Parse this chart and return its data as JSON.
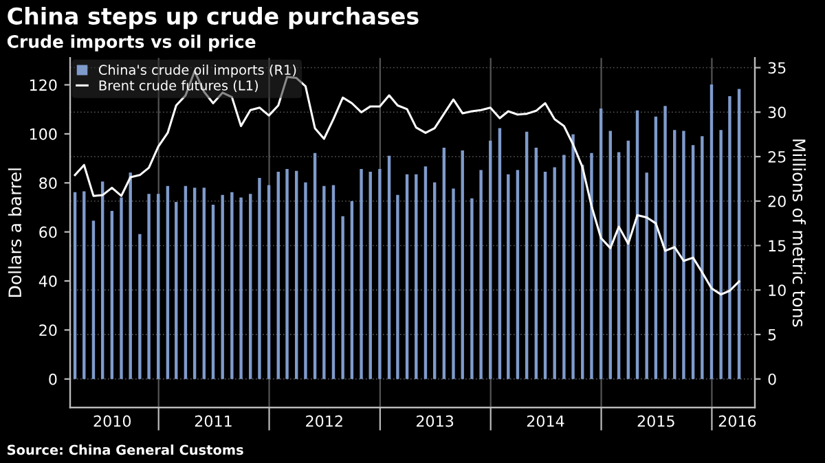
{
  "chart_data": {
    "type": "bar",
    "title": "China steps up crude purchases",
    "subtitle": "Crude imports vs oil price",
    "ylabel": "Dollars a barrel",
    "y2label": "Millions of metric tons",
    "annotations": [
      "Source: China General Customs"
    ],
    "x": [
      "2010-03-31",
      "2010-04-30",
      "2010-05-31",
      "2010-06-30",
      "2010-07-31",
      "2010-08-31",
      "2010-09-30",
      "2010-10-31",
      "2010-11-30",
      "2010-12-31",
      "2011-01-31",
      "2011-02-28",
      "2011-03-31",
      "2011-04-30",
      "2011-05-31",
      "2011-06-30",
      "2011-07-31",
      "2011-08-31",
      "2011-09-30",
      "2011-10-31",
      "2011-11-30",
      "2011-12-31",
      "2012-01-31",
      "2012-02-29",
      "2012-03-31",
      "2012-04-30",
      "2012-05-31",
      "2012-06-30",
      "2012-07-31",
      "2012-08-31",
      "2012-09-30",
      "2012-10-31",
      "2012-11-30",
      "2012-12-31",
      "2013-01-31",
      "2013-02-28",
      "2013-03-31",
      "2013-04-30",
      "2013-05-31",
      "2013-06-30",
      "2013-07-31",
      "2013-08-31",
      "2013-09-30",
      "2013-10-31",
      "2013-11-30",
      "2013-12-31",
      "2014-01-31",
      "2014-02-28",
      "2014-03-31",
      "2014-04-30",
      "2014-05-31",
      "2014-06-30",
      "2014-07-31",
      "2014-08-31",
      "2014-09-30",
      "2014-10-31",
      "2014-11-30",
      "2014-12-31",
      "2015-01-31",
      "2015-02-28",
      "2015-03-31",
      "2015-04-30",
      "2015-05-31",
      "2015-06-30",
      "2015-07-31",
      "2015-08-31",
      "2015-09-30",
      "2015-10-31",
      "2015-11-30",
      "2015-12-31",
      "2016-01-31",
      "2016-02-29",
      "2016-03-31"
    ],
    "series": [
      {
        "name": "China's crude oil imports (R1)",
        "type": "bar",
        "axis": "y2",
        "color": "#7f9bcc",
        "values": [
          21.0,
          21.1,
          17.8,
          22.2,
          18.9,
          20.4,
          23.2,
          16.3,
          20.8,
          20.8,
          21.7,
          19.9,
          21.7,
          21.5,
          21.5,
          19.6,
          20.7,
          21.0,
          20.4,
          20.8,
          22.6,
          21.8,
          23.3,
          23.6,
          23.4,
          22.1,
          25.4,
          21.7,
          21.8,
          18.3,
          20.0,
          23.6,
          23.3,
          23.6,
          25.1,
          20.7,
          23.0,
          23.0,
          23.9,
          22.1,
          26.0,
          21.4,
          25.7,
          20.3,
          23.5,
          26.8,
          28.2,
          23.0,
          23.5,
          27.8,
          26.0,
          23.3,
          23.8,
          25.2,
          27.5,
          24.1,
          25.4,
          30.4,
          27.9,
          25.5,
          26.8,
          30.2,
          23.2,
          29.5,
          30.7,
          28.0,
          27.9,
          26.3,
          27.3,
          33.1,
          28.0,
          31.8,
          32.6
        ]
      },
      {
        "name": "Brent crude futures (L1)",
        "type": "line",
        "axis": "y",
        "color": "#ffffff",
        "values": [
          83.2,
          87.3,
          74.7,
          75.0,
          78.0,
          74.7,
          82.3,
          83.2,
          86.2,
          94.8,
          100.4,
          111.6,
          115.7,
          125.6,
          117.2,
          112.5,
          116.8,
          115.0,
          103.2,
          109.7,
          110.7,
          107.5,
          111.6,
          123.2,
          122.8,
          119.4,
          102.3,
          98.0,
          106.0,
          114.8,
          112.5,
          108.8,
          111.2,
          111.2,
          115.7,
          111.6,
          110.1,
          102.6,
          100.4,
          102.3,
          108.2,
          114.0,
          108.4,
          109.2,
          109.7,
          110.7,
          106.4,
          109.2,
          107.9,
          108.2,
          109.4,
          112.5,
          106.0,
          103.2,
          95.7,
          86.4,
          70.5,
          57.5,
          53.4,
          62.1,
          55.2,
          66.8,
          65.9,
          63.5,
          52.3,
          53.8,
          48.2,
          49.5,
          43.5,
          37.0,
          34.5,
          36.0,
          39.8
        ]
      }
    ],
    "xlim": [
      "2010-03-15",
      "2016-05-22"
    ],
    "xticks": [
      {
        "value": "2011-01-01",
        "label": null
      },
      {
        "value": "2012-01-01",
        "label": null
      },
      {
        "value": "2013-01-01",
        "label": null
      },
      {
        "value": "2014-01-01",
        "label": null
      },
      {
        "value": "2015-01-01",
        "label": null
      },
      {
        "value": "2016-01-01",
        "label": null
      },
      {
        "value": "2010-08-01",
        "label": "2010"
      },
      {
        "value": "2011-07-01",
        "label": "2011"
      },
      {
        "value": "2012-07-01",
        "label": "2012"
      },
      {
        "value": "2013-07-01",
        "label": "2013"
      },
      {
        "value": "2014-07-01",
        "label": "2014"
      },
      {
        "value": "2015-07-01",
        "label": "2015"
      },
      {
        "value": "2016-03-25",
        "label": "2016"
      }
    ],
    "ylim": [
      -11.6,
      131
    ],
    "yticks": [
      0,
      20,
      40,
      60,
      80,
      100,
      120
    ],
    "y2lim": [
      -3.2,
      36.1
    ],
    "y2ticks": [
      0,
      5,
      10,
      15,
      20,
      25,
      30,
      35
    ],
    "grid": true,
    "legend": "top left"
  }
}
